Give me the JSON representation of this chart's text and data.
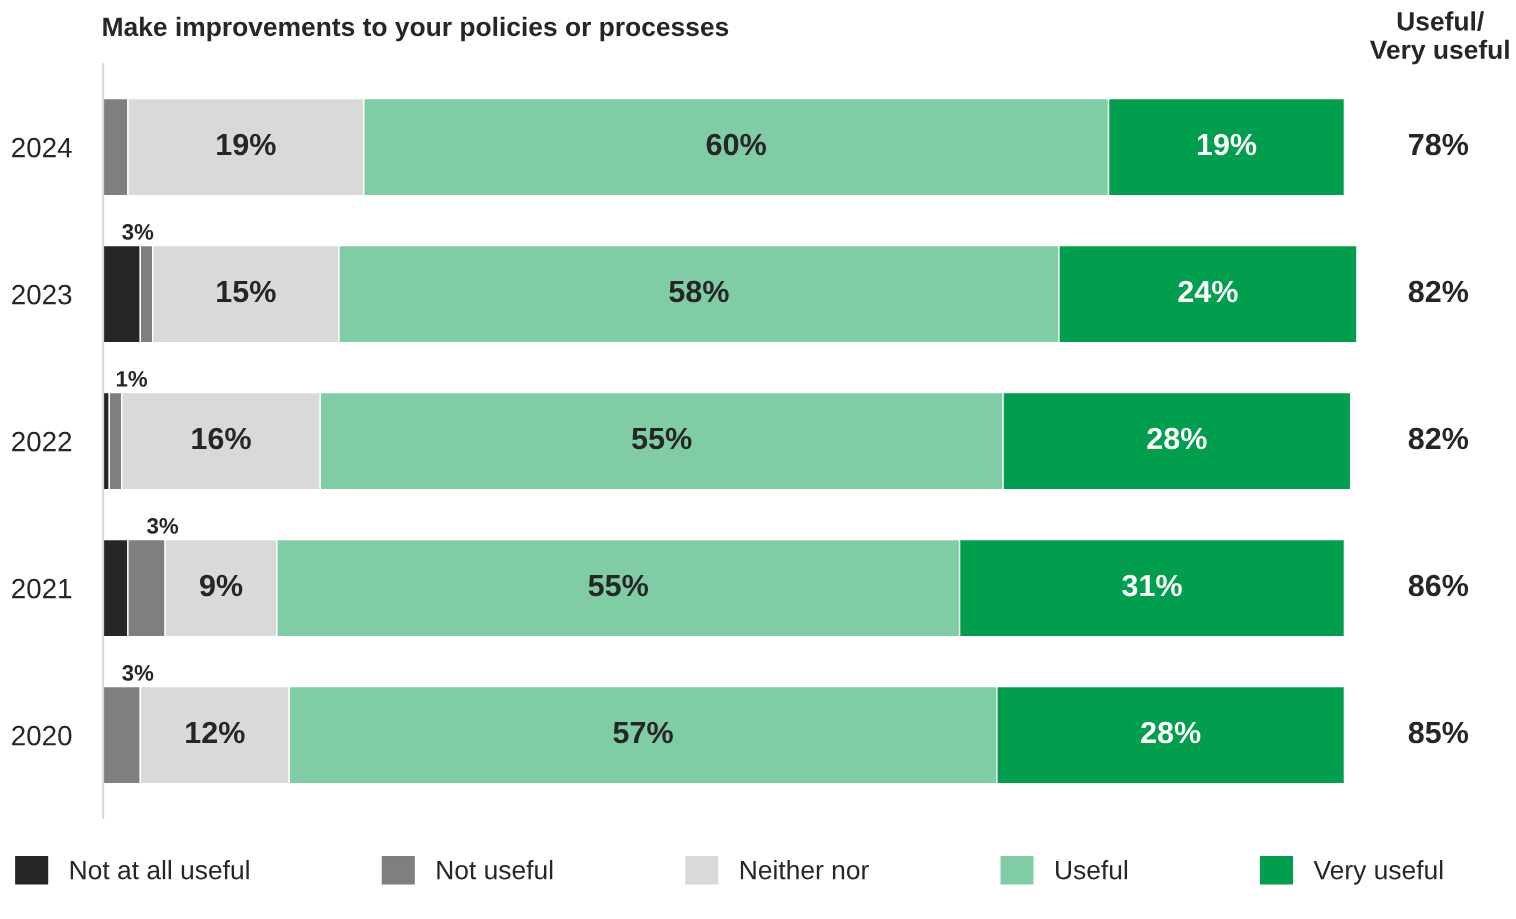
{
  "chart_data": {
    "type": "bar",
    "orientation": "horizontal",
    "stacked": true,
    "title": "Make improvements to your policies or processes",
    "categories": [
      "2024",
      "2023",
      "2022",
      "2021",
      "2020"
    ],
    "series": [
      {
        "name": "Not at all useful",
        "color": "#262626",
        "values": [
          0,
          3,
          0.5,
          2,
          0
        ],
        "value_labels": [
          null,
          "3%",
          null,
          null,
          null
        ]
      },
      {
        "name": "Not useful",
        "color": "#7f7f7f",
        "values": [
          2,
          1,
          1,
          3,
          3
        ],
        "value_labels": [
          null,
          null,
          "1%",
          "3%",
          "3%"
        ]
      },
      {
        "name": "Neither nor",
        "color": "#d9d9d9",
        "values": [
          19,
          15,
          16,
          9,
          12
        ],
        "value_labels": [
          "19%",
          "15%",
          "16%",
          "9%",
          "12%"
        ]
      },
      {
        "name": "Useful",
        "color": "#80cda5",
        "values": [
          60,
          58,
          55,
          55,
          57
        ],
        "value_labels": [
          "60%",
          "58%",
          "55%",
          "55%",
          "57%"
        ]
      },
      {
        "name": "Very useful",
        "color": "#009e4d",
        "values": [
          19,
          24,
          28,
          31,
          28
        ],
        "value_labels": [
          "19%",
          "24%",
          "28%",
          "31%",
          "28%"
        ]
      }
    ],
    "annotations": [
      "Useful/\nVery useful",
      "78%",
      "82%",
      "82%",
      "86%",
      "85%"
    ],
    "legend": "bottom",
    "grid": false
  }
}
